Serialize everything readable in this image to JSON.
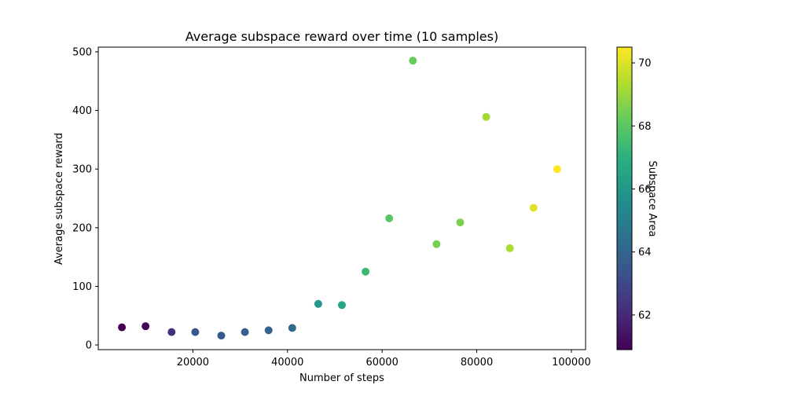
{
  "chart_data": {
    "type": "scatter",
    "title": "Average subspace reward over time (10 samples)",
    "xlabel": "Number of steps",
    "ylabel": "Average subspace reward",
    "colorbar_label": "Subspace Area",
    "xlim": [
      0,
      103000
    ],
    "ylim": [
      -8,
      508
    ],
    "x_ticks": [
      20000,
      40000,
      60000,
      80000,
      100000
    ],
    "y_ticks": [
      0,
      100,
      200,
      300,
      400,
      500
    ],
    "colorbar_range": [
      60.9,
      70.5
    ],
    "colorbar_ticks": [
      62,
      64,
      66,
      68,
      70
    ],
    "colormap": "viridis",
    "grid": false,
    "points": [
      {
        "x": 5000,
        "y": 30,
        "c": 60.9
      },
      {
        "x": 10000,
        "y": 32,
        "c": 61.0
      },
      {
        "x": 15500,
        "y": 22,
        "c": 62.2
      },
      {
        "x": 20500,
        "y": 22,
        "c": 63.5
      },
      {
        "x": 26000,
        "y": 16,
        "c": 63.6
      },
      {
        "x": 31000,
        "y": 22,
        "c": 63.9
      },
      {
        "x": 36000,
        "y": 25,
        "c": 64.0
      },
      {
        "x": 41000,
        "y": 29,
        "c": 64.2
      },
      {
        "x": 46500,
        "y": 70,
        "c": 66.0
      },
      {
        "x": 51500,
        "y": 68,
        "c": 66.6
      },
      {
        "x": 56500,
        "y": 125,
        "c": 67.4
      },
      {
        "x": 61500,
        "y": 216,
        "c": 68.0
      },
      {
        "x": 66500,
        "y": 485,
        "c": 68.3
      },
      {
        "x": 71500,
        "y": 172,
        "c": 68.5
      },
      {
        "x": 76500,
        "y": 209,
        "c": 68.6
      },
      {
        "x": 82000,
        "y": 389,
        "c": 69.2
      },
      {
        "x": 87000,
        "y": 165,
        "c": 69.3
      },
      {
        "x": 92000,
        "y": 234,
        "c": 70.1
      },
      {
        "x": 97000,
        "y": 300,
        "c": 70.5
      }
    ]
  }
}
